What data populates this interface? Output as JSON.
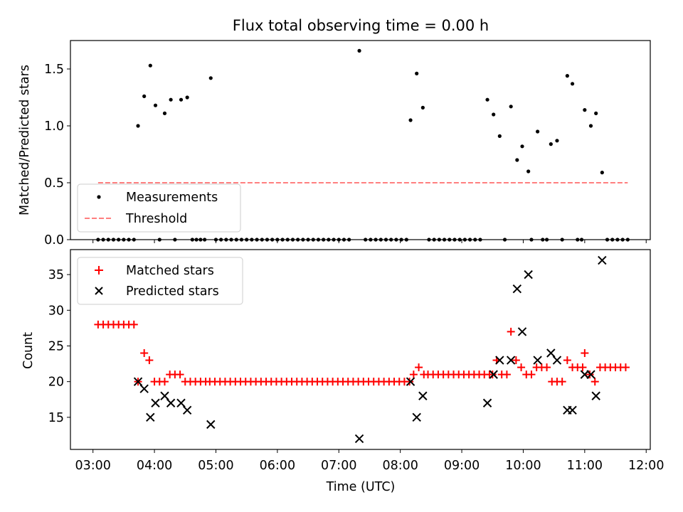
{
  "chart_data": [
    {
      "type": "scatter",
      "title": "Flux total observing time = 0.00 h",
      "ylabel": "Matched/Predicted stars",
      "xlabel": "",
      "x_range": [
        "02:38",
        "12:04"
      ],
      "ylim": [
        0,
        1.75
      ],
      "yticks": [
        "0.0",
        "0.5",
        "1.0",
        "1.5"
      ],
      "grid": false,
      "legend_position": "lower-left",
      "series": [
        {
          "name": "Measurements",
          "marker": "dot",
          "color": "#000000",
          "points_nonzero": [
            [
              "03:44",
              1.0
            ],
            [
              "03:50",
              1.26
            ],
            [
              "03:56",
              1.53
            ],
            [
              "04:01",
              1.18
            ],
            [
              "04:10",
              1.11
            ],
            [
              "04:16",
              1.23
            ],
            [
              "04:26",
              1.23
            ],
            [
              "04:32",
              1.25
            ],
            [
              "04:55",
              1.42
            ],
            [
              "07:20",
              1.66
            ],
            [
              "08:10",
              1.05
            ],
            [
              "08:16",
              1.46
            ],
            [
              "08:22",
              1.16
            ],
            [
              "09:25",
              1.23
            ],
            [
              "09:31",
              1.1
            ],
            [
              "09:37",
              0.91
            ],
            [
              "09:48",
              1.17
            ],
            [
              "09:54",
              0.7
            ],
            [
              "09:59",
              0.82
            ],
            [
              "10:05",
              0.6
            ],
            [
              "10:14",
              0.95
            ],
            [
              "10:27",
              0.84
            ],
            [
              "10:33",
              0.87
            ],
            [
              "10:43",
              1.44
            ],
            [
              "10:48",
              1.37
            ],
            [
              "11:00",
              1.14
            ],
            [
              "11:06",
              1.0
            ],
            [
              "11:11",
              1.11
            ],
            [
              "11:17",
              0.59
            ]
          ],
          "zero_value_times": [
            "03:05",
            "03:10",
            "03:15",
            "03:20",
            "03:25",
            "03:30",
            "03:35",
            "03:40",
            "04:05",
            "04:20",
            "04:37",
            "04:41",
            "04:45",
            "04:49",
            "05:00",
            "05:05",
            "05:10",
            "05:15",
            "05:20",
            "05:25",
            "05:30",
            "05:35",
            "05:40",
            "05:45",
            "05:50",
            "05:55",
            "06:00",
            "06:05",
            "06:10",
            "06:15",
            "06:20",
            "06:25",
            "06:30",
            "06:35",
            "06:40",
            "06:45",
            "06:50",
            "06:55",
            "07:00",
            "07:05",
            "07:10",
            "07:26",
            "07:31",
            "07:36",
            "07:41",
            "07:46",
            "07:51",
            "07:56",
            "08:01",
            "08:06",
            "08:28",
            "08:33",
            "08:38",
            "08:43",
            "08:48",
            "08:53",
            "08:58",
            "09:03",
            "09:08",
            "09:13",
            "09:18",
            "09:42",
            "10:08",
            "10:19",
            "10:23",
            "10:38",
            "10:53",
            "10:57",
            "11:22",
            "11:27",
            "11:32",
            "11:37",
            "11:42"
          ]
        },
        {
          "name": "Threshold",
          "style": "dashed",
          "color": "#ff7f7f",
          "x": [
            "03:05",
            "11:42"
          ],
          "y": [
            0.5,
            0.5
          ]
        }
      ]
    },
    {
      "type": "scatter",
      "title": "",
      "ylabel": "Count",
      "xlabel": "Time (UTC)",
      "x_range": [
        "02:38",
        "12:04"
      ],
      "xticks": [
        "03:00",
        "04:00",
        "05:00",
        "06:00",
        "07:00",
        "08:00",
        "09:00",
        "10:00",
        "11:00",
        "12:00"
      ],
      "ylim": [
        10.5,
        38.5
      ],
      "yticks": [
        "15",
        "20",
        "25",
        "30",
        "35"
      ],
      "grid": false,
      "legend_position": "top-left",
      "series": [
        {
          "name": "Matched stars",
          "marker": "plus",
          "color": "#ff0000",
          "runs": [
            {
              "start": "03:05",
              "end": "03:40",
              "step_min": 5,
              "value": 28
            },
            {
              "start": "04:54",
              "end": "08:09",
              "step_min": 5,
              "value": 20
            },
            {
              "start": "08:27",
              "end": "09:27",
              "step_min": 5,
              "value": 21
            },
            {
              "start": "11:20",
              "end": "11:40",
              "step_min": 5,
              "value": 22
            }
          ],
          "points": [
            [
              "03:44",
              20
            ],
            [
              "03:50",
              24
            ],
            [
              "03:55",
              23
            ],
            [
              "04:00",
              20
            ],
            [
              "04:05",
              20
            ],
            [
              "04:10",
              20
            ],
            [
              "04:15",
              21
            ],
            [
              "04:20",
              21
            ],
            [
              "04:25",
              21
            ],
            [
              "04:30",
              20
            ],
            [
              "04:35",
              20
            ],
            [
              "04:40",
              20
            ],
            [
              "04:45",
              20
            ],
            [
              "04:50",
              20
            ],
            [
              "08:13",
              21
            ],
            [
              "08:18",
              22
            ],
            [
              "08:23",
              21
            ],
            [
              "09:30",
              21
            ],
            [
              "09:34",
              23
            ],
            [
              "09:39",
              21
            ],
            [
              "09:44",
              21
            ],
            [
              "09:48",
              27
            ],
            [
              "09:53",
              23
            ],
            [
              "09:58",
              22
            ],
            [
              "10:03",
              21
            ],
            [
              "10:08",
              21
            ],
            [
              "10:13",
              22
            ],
            [
              "10:18",
              22
            ],
            [
              "10:23",
              22
            ],
            [
              "10:28",
              20
            ],
            [
              "10:33",
              20
            ],
            [
              "10:38",
              20
            ],
            [
              "10:43",
              23
            ],
            [
              "10:48",
              22
            ],
            [
              "10:53",
              22
            ],
            [
              "10:58",
              22
            ],
            [
              "11:00",
              24
            ],
            [
              "11:05",
              21
            ],
            [
              "11:10",
              20
            ],
            [
              "11:15",
              22
            ]
          ]
        },
        {
          "name": "Predicted stars",
          "marker": "x",
          "color": "#000000",
          "points": [
            [
              "03:44",
              20
            ],
            [
              "03:50",
              19
            ],
            [
              "03:56",
              15
            ],
            [
              "04:01",
              17
            ],
            [
              "04:10",
              18
            ],
            [
              "04:16",
              17
            ],
            [
              "04:26",
              17
            ],
            [
              "04:32",
              16
            ],
            [
              "04:55",
              14
            ],
            [
              "07:20",
              12
            ],
            [
              "08:10",
              20
            ],
            [
              "08:16",
              15
            ],
            [
              "08:22",
              18
            ],
            [
              "09:25",
              17
            ],
            [
              "09:31",
              21
            ],
            [
              "09:37",
              23
            ],
            [
              "09:48",
              23
            ],
            [
              "09:54",
              33
            ],
            [
              "09:59",
              27
            ],
            [
              "10:05",
              35
            ],
            [
              "10:14",
              23
            ],
            [
              "10:27",
              24
            ],
            [
              "10:33",
              23
            ],
            [
              "10:43",
              16
            ],
            [
              "10:48",
              16
            ],
            [
              "11:00",
              21
            ],
            [
              "11:06",
              21
            ],
            [
              "11:11",
              18
            ],
            [
              "11:17",
              37
            ]
          ]
        }
      ]
    }
  ]
}
